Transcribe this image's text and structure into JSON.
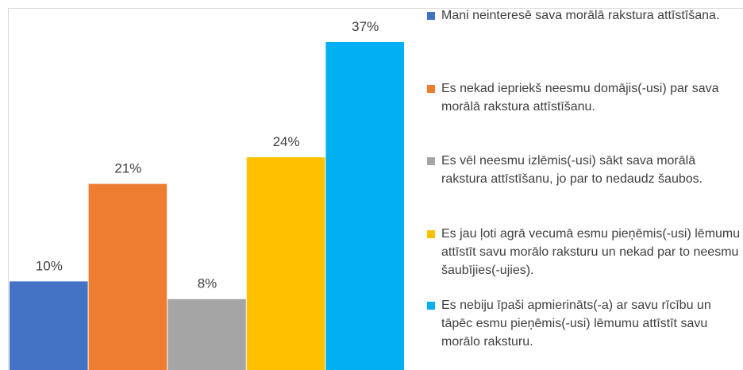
{
  "chart_data": {
    "type": "bar",
    "categories": [
      null
    ],
    "series": [
      {
        "name": "Mani neinteresē sava morālā rakstura attīstīšana.",
        "color": "#4472c4",
        "values": [
          10
        ],
        "value_labels": [
          "10%"
        ]
      },
      {
        "name": "Es nekad iepriekš neesmu domājis(-usi) par sava morālā rakstura attīstīšanu.",
        "color": "#ed7d31",
        "values": [
          21
        ],
        "value_labels": [
          "21%"
        ]
      },
      {
        "name": "Es vēl neesmu izlēmis(-usi) sākt sava morālā rakstura attīstīšanu, jo par to nedaudz šaubos.",
        "color": "#a5a5a5",
        "values": [
          8
        ],
        "value_labels": [
          "8%"
        ]
      },
      {
        "name": "Es jau ļoti agrā vecumā esmu pieņēmis(-usi) lēmumu attīstīt savu morālo raksturu un nekad par to neesmu šaubījies(-ujies).",
        "color": "#ffc000",
        "values": [
          24
        ],
        "value_labels": [
          "24%"
        ]
      },
      {
        "name": "Es nebiju īpaši apmierināts(-a) ar savu rīcību un tāpēc esmu pieņēmis(-usi) lēmumu attīstīt savu morālo raksturu.",
        "color": "#00b0f0",
        "values": [
          37
        ],
        "value_labels": [
          "37%"
        ]
      }
    ],
    "legend": "right"
  }
}
